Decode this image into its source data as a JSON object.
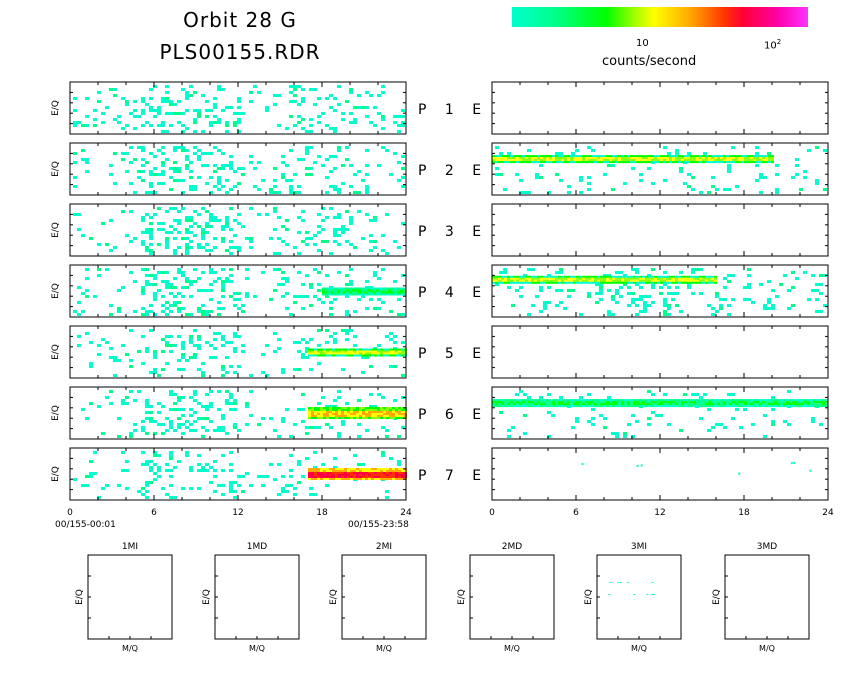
{
  "title_line1": "Orbit 28 G",
  "title_line2": "PLS00155.RDR",
  "colorbar": {
    "label": "counts/second",
    "ticks": [
      {
        "text": "10",
        "sup": ""
      },
      {
        "text": "10",
        "sup": "2"
      }
    ],
    "colors": [
      "#00ffcc",
      "#00ff00",
      "#ffff00",
      "#ff0000",
      "#ff00ff"
    ]
  },
  "chart_data": [
    {
      "type": "heatmap",
      "name": "Left spectrogram column (P1-P7)",
      "ylabel": "E/Q",
      "xticks": [
        "0",
        "6",
        "12",
        "18",
        "24"
      ],
      "xlim": [
        0,
        24
      ],
      "time_start": "00/155-00:01",
      "time_end": "00/155-23:58",
      "panel_labels": [
        "P 1 E",
        "P 2 E",
        "P 3 E",
        "P 4 E",
        "P 5 E",
        "P 6 E",
        "P 7 E"
      ],
      "panels": [
        {
          "name": "P 1",
          "level": "sparse",
          "band": null
        },
        {
          "name": "P 2",
          "level": "sparse",
          "band": null
        },
        {
          "name": "P 3",
          "level": "sparse",
          "band": null
        },
        {
          "name": "P 4",
          "level": "sparse",
          "band": [
            18,
            24,
            "low"
          ]
        },
        {
          "name": "P 5",
          "level": "sparse",
          "band": [
            17,
            24,
            "medium"
          ]
        },
        {
          "name": "P 6",
          "level": "sparse",
          "band": [
            17,
            24,
            "high"
          ]
        },
        {
          "name": "P 7",
          "level": "sparse",
          "band": [
            17,
            24,
            "max"
          ]
        }
      ]
    },
    {
      "type": "heatmap",
      "name": "Right spectrogram column (E)",
      "xticks": [
        "0",
        "6",
        "12",
        "18",
        "24"
      ],
      "xlim": [
        0,
        24
      ],
      "panels": [
        {
          "name": "E 1",
          "level": "empty"
        },
        {
          "name": "E 2",
          "level": "band",
          "band": [
            0,
            20,
            "medium"
          ]
        },
        {
          "name": "E 3",
          "level": "empty"
        },
        {
          "name": "E 4",
          "level": "busy",
          "band": [
            0,
            16,
            "medium"
          ]
        },
        {
          "name": "E 5",
          "level": "empty"
        },
        {
          "name": "E 6",
          "level": "band",
          "band": [
            0,
            24,
            "low"
          ]
        },
        {
          "name": "E 7",
          "level": "dots"
        }
      ]
    },
    {
      "type": "heatmap",
      "name": "Mass spectra",
      "xlabel": "M/Q",
      "ylabel": "E/Q",
      "panels": [
        {
          "name": "1MI",
          "level": "empty"
        },
        {
          "name": "1MD",
          "level": "empty"
        },
        {
          "name": "2MI",
          "level": "empty"
        },
        {
          "name": "2MD",
          "level": "empty"
        },
        {
          "name": "3MI",
          "level": "dots"
        },
        {
          "name": "3MD",
          "level": "empty"
        }
      ]
    }
  ]
}
